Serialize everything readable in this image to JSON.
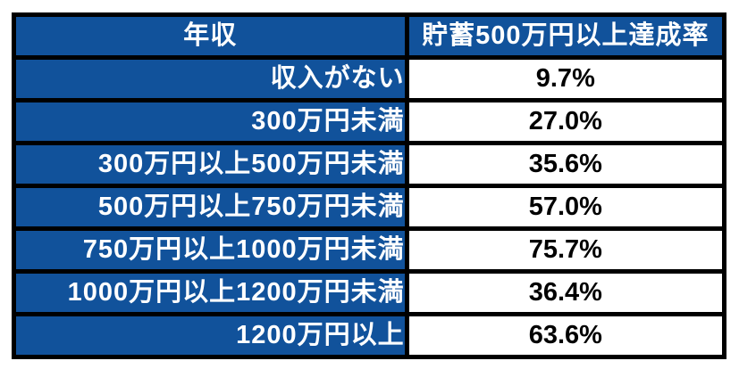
{
  "colors": {
    "header_bg": "#11529B",
    "income_cell_bg": "#11529B",
    "rate_cell_bg": "#FFFFFF",
    "border": "#000000",
    "header_text": "#FFFFFF",
    "income_text": "#FFFFFF",
    "rate_text": "#000000"
  },
  "chart_data": {
    "type": "table",
    "columns": [
      "年収",
      "貯蓄500万円以上達成率"
    ],
    "rows": [
      [
        "収入がない",
        "9.7%"
      ],
      [
        "300万円未満",
        "27.0%"
      ],
      [
        "300万円以上500万円未満",
        "35.6%"
      ],
      [
        "500万円以上750万円未満",
        "57.0%"
      ],
      [
        "750万円以上1000万円未満",
        "75.7%"
      ],
      [
        "1000万円以上1200万円未満",
        "36.4%"
      ],
      [
        "1200万円以上",
        "63.6%"
      ]
    ],
    "values_percent": [
      9.7,
      27.0,
      35.6,
      57.0,
      75.7,
      36.4,
      63.6
    ],
    "layout_hints": {
      "income_column_align": "right",
      "rate_column_align": "center",
      "header_align": "center",
      "grid": true
    }
  }
}
